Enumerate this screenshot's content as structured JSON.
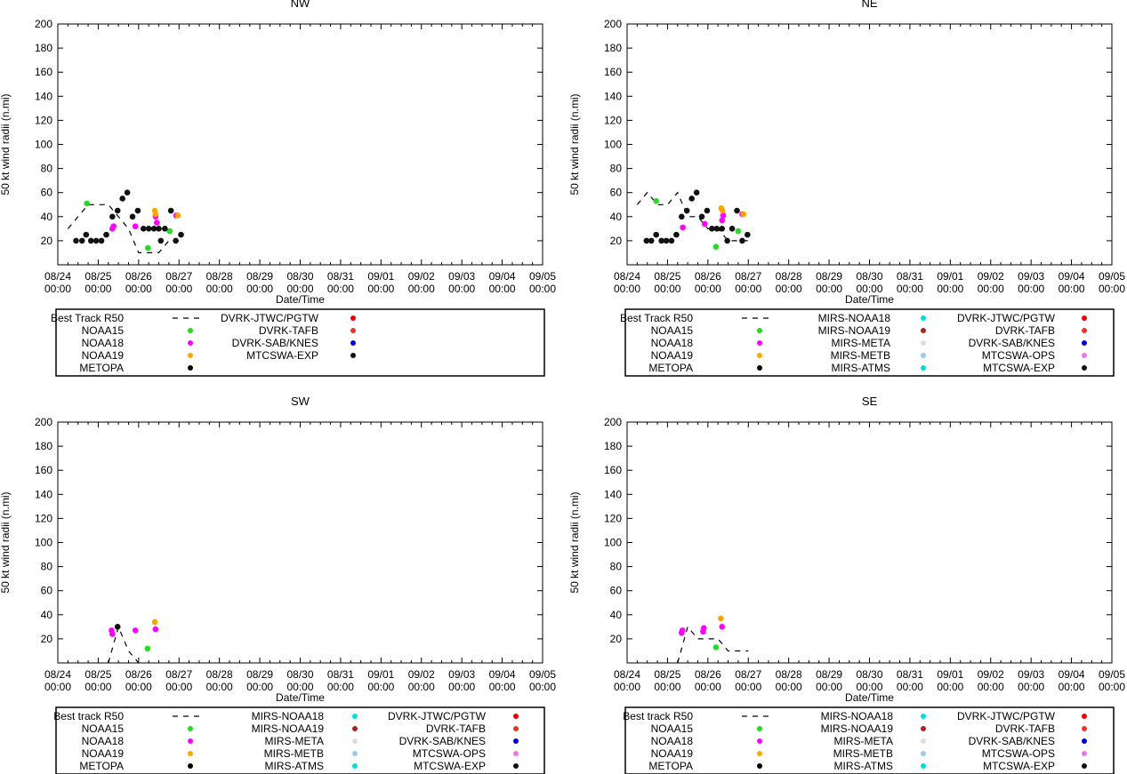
{
  "chart_data": [
    {
      "type": "scatter",
      "title": "NW",
      "xlabel": "Date/Time",
      "ylabel": "50 kt wind radii (n.mi)",
      "ylim": [
        0,
        200
      ],
      "yticks": [
        "20",
        "40",
        "60",
        "80",
        "100",
        "120",
        "140",
        "160",
        "180",
        "200"
      ],
      "xlim": [
        0,
        12
      ],
      "xtick_dates": [
        "08/24",
        "08/25",
        "08/26",
        "08/27",
        "08/28",
        "08/29",
        "08/30",
        "08/31",
        "09/01",
        "09/02",
        "09/03",
        "09/04",
        "09/05"
      ],
      "xtick_time": "00:00",
      "best_track": {
        "name": "Best Track R50",
        "points": [
          [
            0.25,
            30
          ],
          [
            0.75,
            50
          ],
          [
            1.25,
            50
          ],
          [
            1.5,
            40
          ],
          [
            1.75,
            30
          ],
          [
            2,
            10
          ],
          [
            2.25,
            10
          ],
          [
            2.5,
            10
          ],
          [
            2.75,
            20
          ],
          [
            3,
            20
          ]
        ]
      },
      "legend": [
        {
          "label": "Best Track R50",
          "kind": "dash",
          "color": "#000000"
        },
        {
          "label": "NOAA15",
          "kind": "dot",
          "color": "#22dd22"
        },
        {
          "label": "NOAA18",
          "kind": "dot",
          "color": "#ff00ff"
        },
        {
          "label": "NOAA19",
          "kind": "dot",
          "color": "#ffa500"
        },
        {
          "label": "METOPA",
          "kind": "dot",
          "color": "#000000"
        },
        {
          "label": "DVRK-JTWC/PGTW",
          "kind": "dot",
          "color": "#ee0000"
        },
        {
          "label": "DVRK-TAFB",
          "kind": "dot",
          "color": "#ee3322"
        },
        {
          "label": "DVRK-SAB/KNES",
          "kind": "dot",
          "color": "#0000dd"
        },
        {
          "label": "MTCSWA-EXP",
          "kind": "dot",
          "color": "#111111"
        }
      ],
      "series": [
        {
          "name": "NOAA15",
          "color": "#22dd22",
          "points": [
            [
              0.72,
              51
            ],
            [
              2.23,
              14
            ],
            [
              2.77,
              28
            ]
          ]
        },
        {
          "name": "NOAA18",
          "color": "#ff00ff",
          "points": [
            [
              1.35,
              30
            ],
            [
              1.38,
              32
            ],
            [
              1.92,
              32
            ],
            [
              2.42,
              40
            ],
            [
              2.45,
              35
            ],
            [
              2.93,
              41
            ]
          ]
        },
        {
          "name": "NOAA19",
          "color": "#ffa500",
          "points": [
            [
              2.4,
              45
            ],
            [
              2.42,
              42
            ],
            [
              2.97,
              41
            ]
          ]
        },
        {
          "name": "MTCSWA-EXP",
          "color": "#111111",
          "points": [
            [
              0.45,
              20
            ],
            [
              0.6,
              20
            ],
            [
              0.7,
              25
            ],
            [
              0.82,
              20
            ],
            [
              0.95,
              20
            ],
            [
              1.08,
              20
            ],
            [
              1.2,
              25
            ],
            [
              1.35,
              40
            ],
            [
              1.48,
              45
            ],
            [
              1.6,
              55
            ],
            [
              1.72,
              60
            ],
            [
              1.85,
              40
            ],
            [
              1.98,
              45
            ],
            [
              2.12,
              30
            ],
            [
              2.25,
              30
            ],
            [
              2.38,
              30
            ],
            [
              2.5,
              30
            ],
            [
              2.55,
              20
            ],
            [
              2.65,
              30
            ],
            [
              2.8,
              45
            ],
            [
              2.92,
              20
            ],
            [
              3.05,
              25
            ]
          ]
        }
      ]
    },
    {
      "type": "scatter",
      "title": "NE",
      "xlabel": "Date/Time",
      "ylabel": "50 kt wind radii (n.mi)",
      "ylim": [
        0,
        200
      ],
      "yticks": [
        "20",
        "40",
        "60",
        "80",
        "100",
        "120",
        "140",
        "160",
        "180",
        "200"
      ],
      "xlim": [
        0,
        12
      ],
      "xtick_dates": [
        "08/24",
        "08/25",
        "08/26",
        "08/27",
        "08/28",
        "08/29",
        "08/30",
        "08/31",
        "09/01",
        "09/02",
        "09/03",
        "09/04",
        "09/05"
      ],
      "xtick_time": "00:00",
      "best_track": {
        "name": "Best Track R50",
        "points": [
          [
            0.25,
            50
          ],
          [
            0.5,
            60
          ],
          [
            0.75,
            50
          ],
          [
            1,
            50
          ],
          [
            1.25,
            60
          ],
          [
            1.5,
            40
          ],
          [
            1.75,
            40
          ],
          [
            2,
            30
          ],
          [
            2.25,
            30
          ],
          [
            2.5,
            20
          ],
          [
            2.75,
            20
          ],
          [
            3,
            20
          ]
        ]
      },
      "legend": [
        {
          "label": "Best Track R50",
          "kind": "dash",
          "color": "#000000"
        },
        {
          "label": "NOAA15",
          "kind": "dot",
          "color": "#22dd22"
        },
        {
          "label": "NOAA18",
          "kind": "dot",
          "color": "#ff00ff"
        },
        {
          "label": "NOAA19",
          "kind": "dot",
          "color": "#ffa500"
        },
        {
          "label": "METOPA",
          "kind": "dot",
          "color": "#000000"
        },
        {
          "label": "MIRS-NOAA18",
          "kind": "dot",
          "color": "#00dddd"
        },
        {
          "label": "MIRS-NOAA19",
          "kind": "dot",
          "color": "#aa2222"
        },
        {
          "label": "MIRS-META",
          "kind": "dot",
          "color": "#dddddd"
        },
        {
          "label": "MIRS-METB",
          "kind": "dot",
          "color": "#a0c8e8"
        },
        {
          "label": "MIRS-ATMS",
          "kind": "dot",
          "color": "#00dddd"
        },
        {
          "label": "DVRK-JTWC/PGTW",
          "kind": "dot",
          "color": "#ee0000"
        },
        {
          "label": "DVRK-TAFB",
          "kind": "dot",
          "color": "#ee3322"
        },
        {
          "label": "DVRK-SAB/KNES",
          "kind": "dot",
          "color": "#0000dd"
        },
        {
          "label": "MTCSWA-OPS",
          "kind": "dot",
          "color": "#ee77ee"
        },
        {
          "label": "MTCSWA-EXP",
          "kind": "dot",
          "color": "#111111"
        }
      ],
      "series": [
        {
          "name": "NOAA15",
          "color": "#22dd22",
          "points": [
            [
              0.72,
              53
            ],
            [
              2.2,
              15
            ],
            [
              2.75,
              28
            ]
          ]
        },
        {
          "name": "NOAA18",
          "color": "#ff00ff",
          "points": [
            [
              1.38,
              31
            ],
            [
              1.92,
              34
            ],
            [
              2.35,
              37
            ],
            [
              2.38,
              41
            ],
            [
              2.85,
              42
            ]
          ]
        },
        {
          "name": "NOAA19",
          "color": "#ffa500",
          "points": [
            [
              2.33,
              47
            ],
            [
              2.36,
              45
            ],
            [
              2.88,
              42
            ]
          ]
        },
        {
          "name": "MTCSWA-EXP",
          "color": "#111111",
          "points": [
            [
              0.48,
              20
            ],
            [
              0.6,
              20
            ],
            [
              0.72,
              25
            ],
            [
              0.85,
              20
            ],
            [
              0.97,
              20
            ],
            [
              1.1,
              20
            ],
            [
              1.22,
              25
            ],
            [
              1.35,
              40
            ],
            [
              1.48,
              45
            ],
            [
              1.6,
              55
            ],
            [
              1.72,
              60
            ],
            [
              1.85,
              40
            ],
            [
              1.98,
              45
            ],
            [
              2.1,
              30
            ],
            [
              2.22,
              30
            ],
            [
              2.35,
              30
            ],
            [
              2.48,
              20
            ],
            [
              2.6,
              30
            ],
            [
              2.72,
              45
            ],
            [
              2.85,
              20
            ],
            [
              2.98,
              25
            ]
          ]
        }
      ]
    },
    {
      "type": "scatter",
      "title": "SW",
      "xlabel": "Date/Time",
      "ylabel": "50 kt wind radii (n.mi)",
      "ylim": [
        0,
        200
      ],
      "yticks": [
        "20",
        "40",
        "60",
        "80",
        "100",
        "120",
        "140",
        "160",
        "180",
        "200"
      ],
      "xlim": [
        0,
        12
      ],
      "xtick_dates": [
        "08/24",
        "08/25",
        "08/26",
        "08/27",
        "08/28",
        "08/29",
        "08/30",
        "08/31",
        "09/01",
        "09/02",
        "09/03",
        "09/04",
        "09/05"
      ],
      "xtick_time": "00:00",
      "best_track": {
        "name": "Best track R50",
        "points": [
          [
            1.25,
            0
          ],
          [
            1.5,
            30
          ],
          [
            1.75,
            10
          ],
          [
            2,
            0
          ]
        ]
      },
      "legend": [
        {
          "label": "Best track R50",
          "kind": "dash",
          "color": "#000000"
        },
        {
          "label": "NOAA15",
          "kind": "dot",
          "color": "#22dd22"
        },
        {
          "label": "NOAA18",
          "kind": "dot",
          "color": "#ff00ff"
        },
        {
          "label": "NOAA19",
          "kind": "dot",
          "color": "#ffa500"
        },
        {
          "label": "METOPA",
          "kind": "dot",
          "color": "#000000"
        },
        {
          "label": "MIRS-NOAA18",
          "kind": "dot",
          "color": "#00dddd"
        },
        {
          "label": "MIRS-NOAA19",
          "kind": "dot",
          "color": "#aa2222"
        },
        {
          "label": "MIRS-META",
          "kind": "dot",
          "color": "#dddddd"
        },
        {
          "label": "MIRS-METB",
          "kind": "dot",
          "color": "#a0c8e8"
        },
        {
          "label": "MIRS-ATMS",
          "kind": "dot",
          "color": "#00dddd"
        },
        {
          "label": "DVRK-JTWC/PGTW",
          "kind": "dot",
          "color": "#ee0000"
        },
        {
          "label": "DVRK-TAFB",
          "kind": "dot",
          "color": "#ee3322"
        },
        {
          "label": "DVRK-SAB/KNES",
          "kind": "dot",
          "color": "#0000dd"
        },
        {
          "label": "MTCSWA-OPS",
          "kind": "dot",
          "color": "#ee77ee"
        },
        {
          "label": "MTCSWA-EXP",
          "kind": "dot",
          "color": "#111111"
        }
      ],
      "series": [
        {
          "name": "NOAA15",
          "color": "#22dd22",
          "points": [
            [
              2.22,
              12
            ]
          ]
        },
        {
          "name": "NOAA18",
          "color": "#ff00ff",
          "points": [
            [
              1.33,
              27
            ],
            [
              1.35,
              24
            ],
            [
              1.92,
              27
            ],
            [
              2.42,
              28
            ]
          ]
        },
        {
          "name": "NOAA19",
          "color": "#ffa500",
          "points": [
            [
              2.4,
              34
            ]
          ]
        },
        {
          "name": "METOPA",
          "color": "#111111",
          "points": [
            [
              1.48,
              30
            ]
          ]
        }
      ]
    },
    {
      "type": "scatter",
      "title": "SE",
      "xlabel": "Date/Time",
      "ylabel": "50 kt wind radii (n.mi)",
      "ylim": [
        0,
        200
      ],
      "yticks": [
        "20",
        "40",
        "60",
        "80",
        "100",
        "120",
        "140",
        "160",
        "180",
        "200"
      ],
      "xlim": [
        0,
        12
      ],
      "xtick_dates": [
        "08/24",
        "08/25",
        "08/26",
        "08/27",
        "08/28",
        "08/29",
        "08/30",
        "08/31",
        "09/01",
        "09/02",
        "09/03",
        "09/04",
        "09/05"
      ],
      "xtick_time": "00:00",
      "best_track": {
        "name": "Best track R50",
        "points": [
          [
            1.25,
            0
          ],
          [
            1.5,
            30
          ],
          [
            1.75,
            20
          ],
          [
            2,
            20
          ],
          [
            2.25,
            20
          ],
          [
            2.5,
            10
          ],
          [
            2.75,
            10
          ],
          [
            3,
            10
          ]
        ]
      },
      "legend": [
        {
          "label": "Best track R50",
          "kind": "dash",
          "color": "#000000"
        },
        {
          "label": "NOAA15",
          "kind": "dot",
          "color": "#22dd22"
        },
        {
          "label": "NOAA18",
          "kind": "dot",
          "color": "#ff00ff"
        },
        {
          "label": "NOAA19",
          "kind": "dot",
          "color": "#ffa500"
        },
        {
          "label": "METOPA",
          "kind": "dot",
          "color": "#000000"
        },
        {
          "label": "MIRS-NOAA18",
          "kind": "dot",
          "color": "#00dddd"
        },
        {
          "label": "MIRS-NOAA19",
          "kind": "dot",
          "color": "#aa2222"
        },
        {
          "label": "MIRS-META",
          "kind": "dot",
          "color": "#dddddd"
        },
        {
          "label": "MIRS-METB",
          "kind": "dot",
          "color": "#a0c8e8"
        },
        {
          "label": "MIRS-ATMS",
          "kind": "dot",
          "color": "#00dddd"
        },
        {
          "label": "DVRK-JTWC/PGTW",
          "kind": "dot",
          "color": "#ee0000"
        },
        {
          "label": "DVRK-TAFB",
          "kind": "dot",
          "color": "#ee3322"
        },
        {
          "label": "DVRK-SAB/KNES",
          "kind": "dot",
          "color": "#0000dd"
        },
        {
          "label": "MTCSWA-OPS",
          "kind": "dot",
          "color": "#ee77ee"
        },
        {
          "label": "MTCSWA-EXP",
          "kind": "dot",
          "color": "#111111"
        }
      ],
      "series": [
        {
          "name": "NOAA15",
          "color": "#22dd22",
          "points": [
            [
              2.2,
              13
            ]
          ]
        },
        {
          "name": "NOAA18",
          "color": "#ff00ff",
          "points": [
            [
              1.35,
              25
            ],
            [
              1.37,
              27
            ],
            [
              1.88,
              26
            ],
            [
              1.9,
              29
            ],
            [
              2.35,
              30
            ]
          ]
        },
        {
          "name": "NOAA19",
          "color": "#ffa500",
          "points": [
            [
              2.32,
              37
            ]
          ]
        }
      ]
    }
  ]
}
